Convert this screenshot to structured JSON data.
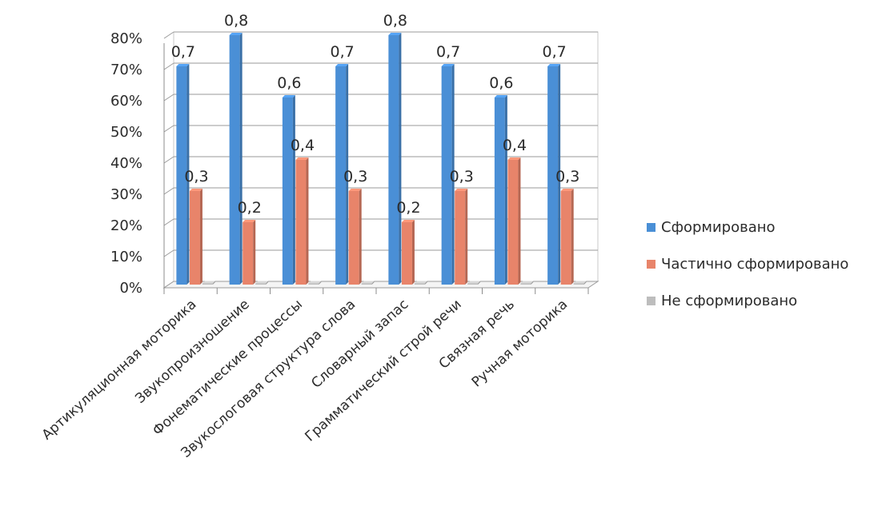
{
  "chart_data": {
    "type": "bar",
    "title": "",
    "xlabel": "",
    "ylabel": "",
    "ylim": [
      0,
      0.8
    ],
    "yticks": [
      0,
      0.1,
      0.2,
      0.3,
      0.4,
      0.5,
      0.6,
      0.7,
      0.8
    ],
    "ytick_labels": [
      "0%",
      "10%",
      "20%",
      "30%",
      "40%",
      "50%",
      "60%",
      "70%",
      "80%"
    ],
    "grid": true,
    "legend_position": "right",
    "categories": [
      "Артикуляционная моторика",
      "Звукопроизношение",
      "Фонематические процессы",
      "Звукослоговая структура слова",
      "Словарный запас",
      "Грамматический строй речи",
      "Связная речь",
      "Ручная моторика"
    ],
    "series": [
      {
        "name": "Сформировано",
        "color": "#4a8fd6",
        "values": [
          0.7,
          0.8,
          0.6,
          0.7,
          0.8,
          0.7,
          0.6,
          0.7
        ],
        "data_labels": [
          "0,7",
          "0,8",
          "0,6",
          "0,7",
          "0,8",
          "0,7",
          "0,6",
          "0,7"
        ]
      },
      {
        "name": "Частично сформировано",
        "color": "#e8846a",
        "values": [
          0.3,
          0.2,
          0.4,
          0.3,
          0.2,
          0.3,
          0.4,
          0.3
        ],
        "data_labels": [
          "0,3",
          "0,2",
          "0,4",
          "0,3",
          "0,2",
          "0,3",
          "0,4",
          "0,3"
        ]
      },
      {
        "name": "Не сформировано",
        "color": "#bdbdbd",
        "values": [
          0,
          0,
          0,
          0,
          0,
          0,
          0,
          0
        ],
        "data_labels": []
      }
    ]
  }
}
